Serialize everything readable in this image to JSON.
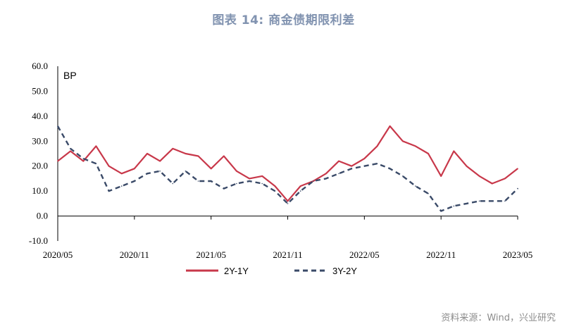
{
  "title": "图表 14: 商金债期限利差",
  "source": "资料来源：Wind，兴业研究",
  "chart_data": {
    "type": "line",
    "ylabel": "BP",
    "ylim": [
      -10,
      60
    ],
    "yticks": [
      "-10.0",
      "0.0",
      "10.0",
      "20.0",
      "30.0",
      "40.0",
      "50.0",
      "60.0"
    ],
    "xticks": [
      "2020/05",
      "2020/11",
      "2021/05",
      "2021/11",
      "2022/05",
      "2022/11",
      "2023/05"
    ],
    "x_months": [
      "2020/05",
      "2020/06",
      "2020/07",
      "2020/08",
      "2020/09",
      "2020/10",
      "2020/11",
      "2020/12",
      "2021/01",
      "2021/02",
      "2021/03",
      "2021/04",
      "2021/05",
      "2021/06",
      "2021/07",
      "2021/08",
      "2021/09",
      "2021/10",
      "2021/11",
      "2021/12",
      "2022/01",
      "2022/02",
      "2022/03",
      "2022/04",
      "2022/05",
      "2022/06",
      "2022/07",
      "2022/08",
      "2022/09",
      "2022/10",
      "2022/11",
      "2022/12",
      "2023/01",
      "2023/02",
      "2023/03",
      "2023/04",
      "2023/05"
    ],
    "series": [
      {
        "name": "2Y-1Y",
        "color": "#c8384a",
        "style": "solid",
        "values": [
          22,
          26,
          22,
          28,
          20,
          17,
          19,
          25,
          22,
          27,
          25,
          24,
          19,
          24,
          18,
          15,
          16,
          12,
          6,
          12,
          14,
          17,
          22,
          20,
          23,
          28,
          36,
          30,
          28,
          25,
          16,
          26,
          20,
          16,
          13,
          15,
          19
        ]
      },
      {
        "name": "3Y-2Y",
        "color": "#3a4a68",
        "style": "dashed",
        "values": [
          36,
          27,
          23,
          21,
          10,
          12,
          14,
          17,
          18,
          13,
          18,
          14,
          14,
          11,
          13,
          14,
          13,
          10,
          5,
          10,
          14,
          15,
          17,
          19,
          20,
          21,
          19,
          16,
          12,
          9,
          2,
          4,
          5,
          6,
          6,
          6,
          11
        ]
      }
    ]
  }
}
